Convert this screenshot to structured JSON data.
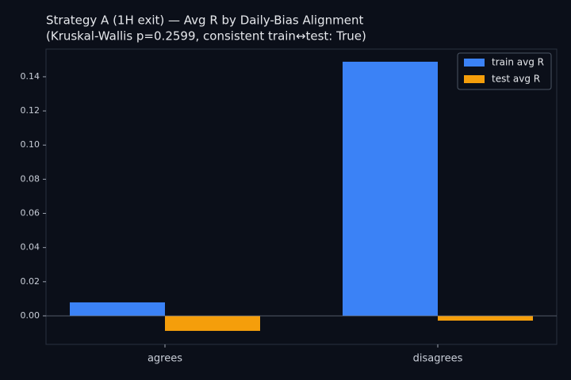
{
  "chart_data": {
    "type": "bar",
    "title": "Strategy A (1H exit) — Avg R by Daily-Bias Alignment",
    "subtitle": "(Kruskal-Wallis p=0.2599, consistent train↔test: True)",
    "categories": [
      "agrees",
      "disagrees"
    ],
    "series": [
      {
        "name": "train avg R",
        "color": "#3b82f6",
        "values": [
          0.0079,
          0.1488
        ]
      },
      {
        "name": "test avg R",
        "color": "#f59e0b",
        "values": [
          -0.0088,
          -0.0028
        ]
      }
    ],
    "ylim": [
      -0.0167,
      0.1562
    ],
    "yticks": [
      {
        "value": 0,
        "label": "0.00"
      },
      {
        "value": 0.02,
        "label": "0.02"
      },
      {
        "value": 0.04,
        "label": "0.04"
      },
      {
        "value": 0.06,
        "label": "0.06"
      },
      {
        "value": 0.08,
        "label": "0.08"
      },
      {
        "value": 0.1,
        "label": "0.10"
      },
      {
        "value": 0.12,
        "label": "0.12"
      },
      {
        "value": 0.14,
        "label": "0.14"
      }
    ],
    "legend": "upper right",
    "grid": false
  }
}
